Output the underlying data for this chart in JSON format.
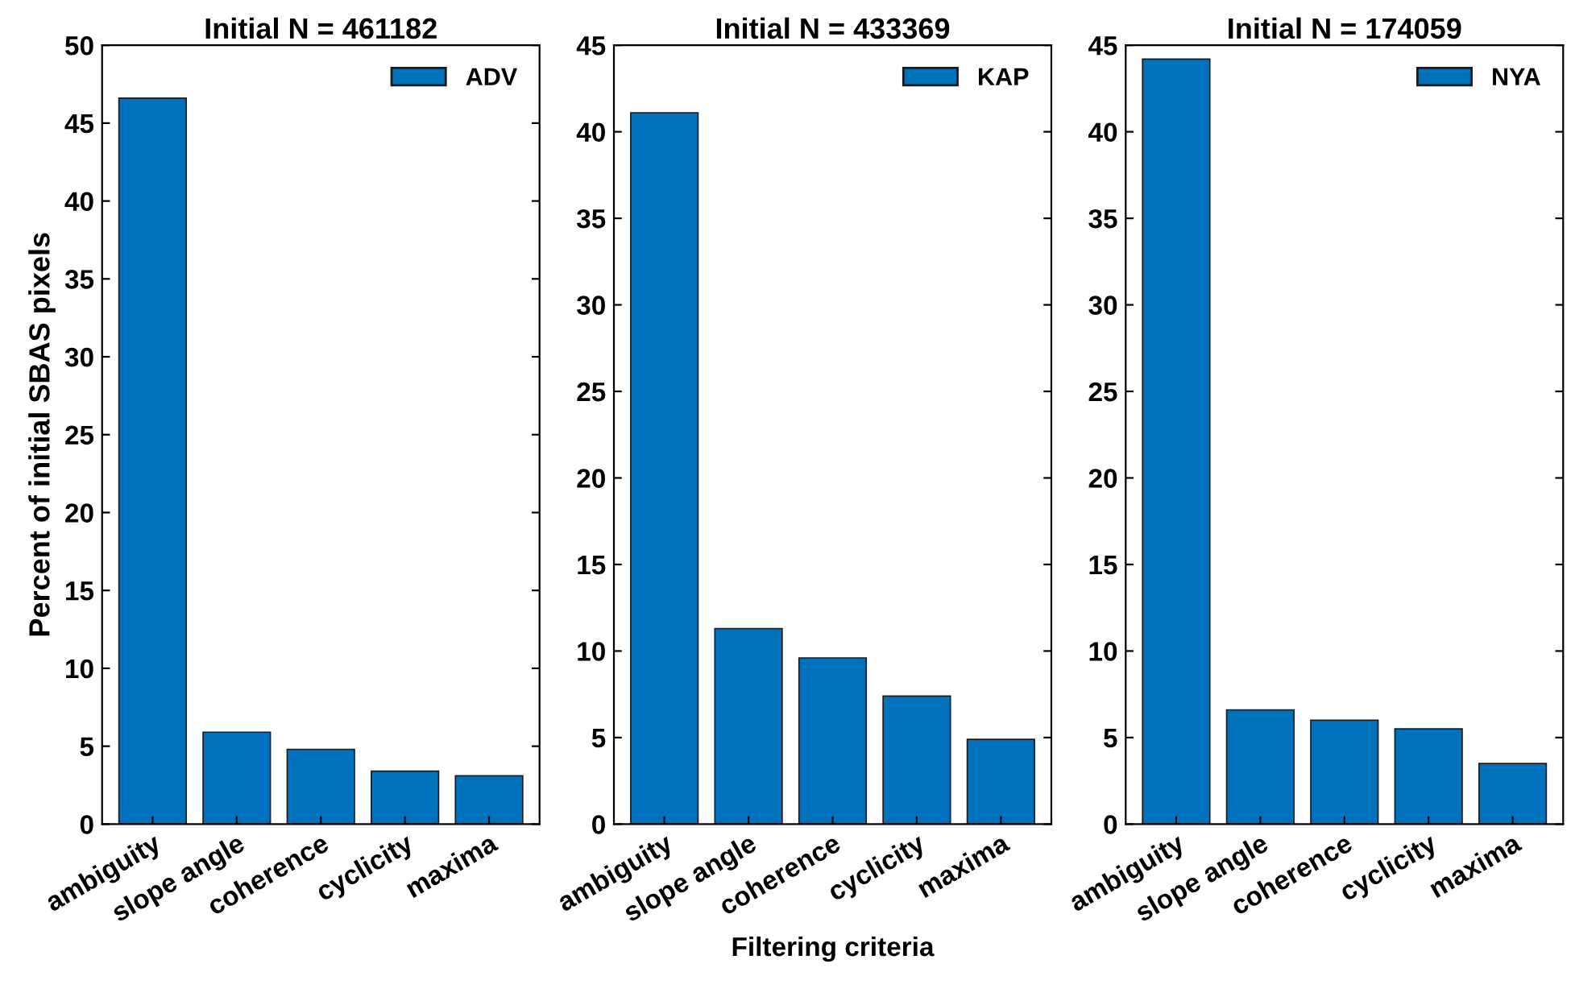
{
  "chart_data": [
    {
      "type": "bar",
      "title": "Initial N = 461182",
      "ylabel": "Percent of initial SBAS pixels",
      "categories": [
        "ambiguity",
        "slope angle",
        "coherence",
        "cyclicity",
        "maxima"
      ],
      "series": [
        {
          "name": "ADV",
          "color": "#0072bd",
          "values": [
            46.6,
            5.9,
            4.8,
            3.4,
            3.1
          ]
        }
      ],
      "ylim": [
        0,
        50
      ],
      "yticks": [
        0,
        5,
        10,
        15,
        20,
        25,
        30,
        35,
        40,
        45,
        50
      ],
      "legend": "top right",
      "grid": false
    },
    {
      "type": "bar",
      "title": "Initial N = 433369",
      "xlabel": "Filtering criteria",
      "categories": [
        "ambiguity",
        "slope angle",
        "coherence",
        "cyclicity",
        "maxima"
      ],
      "series": [
        {
          "name": "KAP",
          "color": "#0072bd",
          "values": [
            41.1,
            11.3,
            9.6,
            7.4,
            4.9
          ]
        }
      ],
      "ylim": [
        0,
        45
      ],
      "yticks": [
        0,
        5,
        10,
        15,
        20,
        25,
        30,
        35,
        40,
        45
      ],
      "legend": "top right",
      "grid": false
    },
    {
      "type": "bar",
      "title": "Initial N = 174059",
      "categories": [
        "ambiguity",
        "slope angle",
        "coherence",
        "cyclicity",
        "maxima"
      ],
      "series": [
        {
          "name": "NYA",
          "color": "#0072bd",
          "values": [
            44.2,
            6.6,
            6.0,
            5.5,
            3.5
          ]
        }
      ],
      "ylim": [
        0,
        45
      ],
      "yticks": [
        0,
        5,
        10,
        15,
        20,
        25,
        30,
        35,
        40,
        45
      ],
      "legend": "top right",
      "grid": false
    }
  ]
}
